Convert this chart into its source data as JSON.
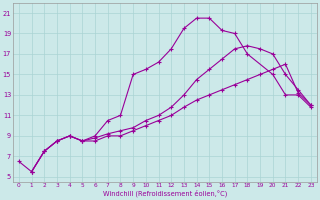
{
  "xlabel": "Windchill (Refroidissement éolien,°C)",
  "background_color": "#cce9e9",
  "line_color": "#990099",
  "grid_color": "#aad4d4",
  "xlim": [
    -0.5,
    23.5
  ],
  "ylim": [
    4.5,
    22.0
  ],
  "xticks": [
    0,
    1,
    2,
    3,
    4,
    5,
    6,
    7,
    8,
    9,
    10,
    11,
    12,
    13,
    14,
    15,
    16,
    17,
    18,
    19,
    20,
    21,
    22,
    23
  ],
  "yticks": [
    5,
    7,
    9,
    11,
    13,
    15,
    17,
    19,
    21
  ],
  "curve1_x": [
    0,
    1,
    2,
    3,
    4,
    5,
    6,
    7,
    8,
    9,
    10,
    11,
    12,
    13,
    14,
    15,
    16,
    17,
    18,
    20,
    21,
    22,
    23
  ],
  "curve1_y": [
    6.5,
    5.5,
    7.5,
    8.5,
    9.0,
    8.5,
    9.0,
    10.5,
    11.0,
    15.0,
    15.5,
    16.2,
    17.5,
    19.5,
    20.5,
    20.5,
    19.3,
    19.0,
    17.0,
    15.0,
    13.0,
    13.0,
    11.8
  ],
  "curve2_x": [
    1,
    2,
    3,
    4,
    5,
    6,
    7,
    8,
    9,
    10,
    11,
    12,
    13,
    14,
    15,
    16,
    17,
    18,
    19,
    20,
    21,
    22,
    23
  ],
  "curve2_y": [
    5.5,
    7.5,
    8.5,
    9.0,
    8.5,
    8.8,
    9.2,
    9.5,
    9.8,
    10.5,
    11.0,
    11.8,
    13.0,
    14.5,
    15.5,
    16.5,
    17.5,
    17.8,
    17.5,
    17.0,
    15.0,
    13.5,
    12.0
  ],
  "curve3_x": [
    1,
    2,
    3,
    4,
    5,
    6,
    7,
    8,
    9,
    10,
    11,
    12,
    13,
    14,
    15,
    16,
    17,
    18,
    19,
    20,
    21,
    22,
    23
  ],
  "curve3_y": [
    5.5,
    7.5,
    8.5,
    9.0,
    8.5,
    8.5,
    9.0,
    9.0,
    9.5,
    10.0,
    10.5,
    11.0,
    11.8,
    12.5,
    13.0,
    13.5,
    14.0,
    14.5,
    15.0,
    15.5,
    16.0,
    13.2,
    12.0
  ]
}
